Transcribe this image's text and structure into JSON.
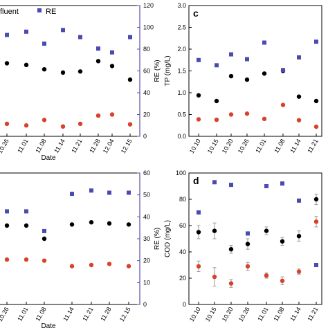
{
  "colors": {
    "effluent": "#d9412b",
    "influent": "#000000",
    "re": "#4a4ab0",
    "re_axis": "#5a4aa8",
    "error": "#999999"
  },
  "legend": {
    "influent_text": "fluent",
    "re_text": "RE"
  },
  "chart_data": [
    {
      "panel": "",
      "type": "scatter",
      "x": [
        "10.26",
        "11.01",
        "11.08",
        "11.14",
        "11.21",
        "11.28",
        "12.04",
        "12.15"
      ],
      "xlabel": "Date",
      "ylabel": "",
      "y2label": "RE (%)",
      "y2lim": [
        0,
        120
      ],
      "y2ticks": [
        "0",
        "20",
        "40",
        "60",
        "80",
        "100",
        "120"
      ],
      "series": [
        {
          "key": "influent",
          "values": [
            67,
            65.5,
            61.5,
            58.5,
            59.5,
            69,
            64.5,
            52
          ],
          "axis": "left"
        },
        {
          "key": "effluent",
          "values": [
            11.5,
            10,
            15,
            9,
            11.5,
            19,
            20,
            11
          ],
          "axis": "left"
        },
        {
          "key": "re",
          "values": [
            93,
            96,
            85,
            97.5,
            91,
            80.5,
            77,
            91
          ],
          "axis": "right"
        }
      ]
    },
    {
      "panel": "c",
      "type": "scatter",
      "x": [
        "10.10",
        "10.15",
        "10.20",
        "10.26",
        "11.01",
        "11.08",
        "11.14",
        "11.21"
      ],
      "xlabel": "",
      "ylabel": "TP (mg/L)",
      "ylim": [
        0,
        3.0
      ],
      "yticks": [
        "0.0",
        "0.5",
        "1.0",
        "1.5",
        "2.0",
        "2.5",
        "3.0"
      ],
      "series": [
        {
          "key": "influent",
          "values": [
            0.94,
            0.81,
            1.38,
            1.3,
            1.44,
            1.5,
            0.91,
            0.81
          ],
          "axis": "left"
        },
        {
          "key": "effluent",
          "values": [
            0.39,
            0.38,
            0.5,
            0.52,
            0.4,
            0.72,
            0.37,
            0.22
          ],
          "axis": "left"
        },
        {
          "key": "re",
          "values": [
            1.75,
            1.63,
            1.88,
            1.77,
            2.15,
            1.52,
            1.81,
            2.17
          ],
          "axis": "left"
        }
      ]
    },
    {
      "panel": "",
      "type": "scatter",
      "x": [
        "10.26",
        "11.01",
        "11.08",
        "11.14",
        "11.21",
        "11.28",
        "12.15"
      ],
      "xlabel": "Date",
      "ylabel": "",
      "y2label": "RE (%)",
      "y2lim": [
        0,
        60
      ],
      "y2ticks": [
        "0",
        "10",
        "20",
        "30",
        "40",
        "50",
        "60"
      ],
      "series": [
        {
          "key": "influent",
          "values": [
            36,
            36,
            30,
            36.5,
            37.5,
            37,
            36.5
          ],
          "axis": "right"
        },
        {
          "key": "effluent",
          "values": [
            20.5,
            20.5,
            20,
            17.5,
            18,
            18.5,
            17.5
          ],
          "axis": "right"
        },
        {
          "key": "re",
          "values": [
            42.5,
            42.5,
            33.5,
            50.5,
            52,
            51,
            51
          ],
          "axis": "right"
        }
      ]
    },
    {
      "panel": "d",
      "type": "scatter",
      "x": [
        "10.10",
        "10.15",
        "10.20",
        "10.26",
        "11.01",
        "11.08",
        "11.14",
        "11.21"
      ],
      "xlabel": "",
      "ylabel": "COD (mg/L)",
      "ylim": [
        0,
        100
      ],
      "yticks": [
        "0",
        "20",
        "40",
        "60",
        "80",
        "100"
      ],
      "series": [
        {
          "key": "influent",
          "values": [
            55,
            56,
            42,
            46,
            56,
            48,
            52,
            80
          ],
          "errors": [
            5,
            6,
            3,
            4,
            3,
            3,
            4,
            4
          ],
          "axis": "left"
        },
        {
          "key": "effluent",
          "values": [
            29,
            21,
            16,
            29,
            22,
            18,
            25,
            63
          ],
          "errors": [
            4,
            7,
            3,
            3,
            2,
            3,
            2,
            4
          ],
          "axis": "left"
        },
        {
          "key": "re",
          "values": [
            70,
            93,
            91,
            54,
            90,
            92,
            79,
            30
          ],
          "axis": "left"
        }
      ]
    }
  ]
}
